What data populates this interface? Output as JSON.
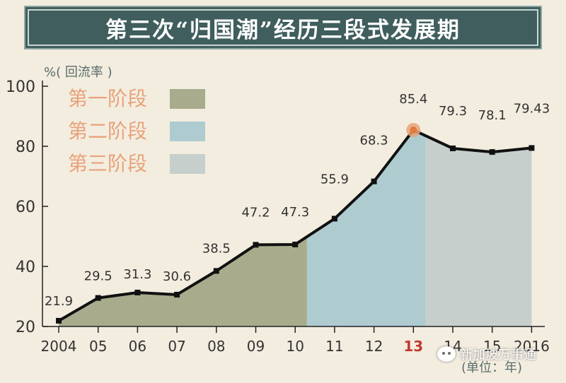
{
  "header": {
    "title": "第三次“归国潮”经历三段式发展期"
  },
  "watermark": {
    "text": "新加坡万事通",
    "icon": "wechat-icon"
  },
  "chart_data": {
    "type": "area",
    "ylabel": "%( 回流率 )",
    "unit_note": "(单位：年)",
    "ylim": [
      20,
      100
    ],
    "yticks": [
      20,
      40,
      60,
      80,
      100
    ],
    "x_tick_labels": [
      "2004",
      "05",
      "06",
      "07",
      "08",
      "09",
      "10",
      "11",
      "12",
      "13",
      "14",
      "15",
      "2016"
    ],
    "values": [
      21.9,
      29.5,
      31.3,
      30.6,
      38.5,
      47.2,
      47.3,
      55.9,
      68.3,
      85.4,
      79.3,
      78.1,
      79.43
    ],
    "data_labels": [
      "21.9",
      "29.5",
      "31.3",
      "30.6",
      "38.5",
      "47.2",
      "47.3",
      "55.9",
      "68.3",
      "85.4",
      "79.3",
      "78.1",
      "79.43"
    ],
    "highlight_index": 9,
    "highlight_label_index": 9,
    "stages": [
      {
        "label": "第一阶段",
        "from_index": 0,
        "to_index": 6.3,
        "color": "#a8ac8c"
      },
      {
        "label": "第二阶段",
        "from_index": 6.3,
        "to_index": 9.3,
        "color": "#aecbd0"
      },
      {
        "label": "第三阶段",
        "from_index": 9.3,
        "to_index": 12,
        "color": "#c6cfcc"
      }
    ],
    "colors": {
      "line": "#111111",
      "highlight": "#e8a27a",
      "highlight_label": "#c0392b",
      "stage_label": "#e8a27a",
      "axis": "#222222"
    }
  }
}
